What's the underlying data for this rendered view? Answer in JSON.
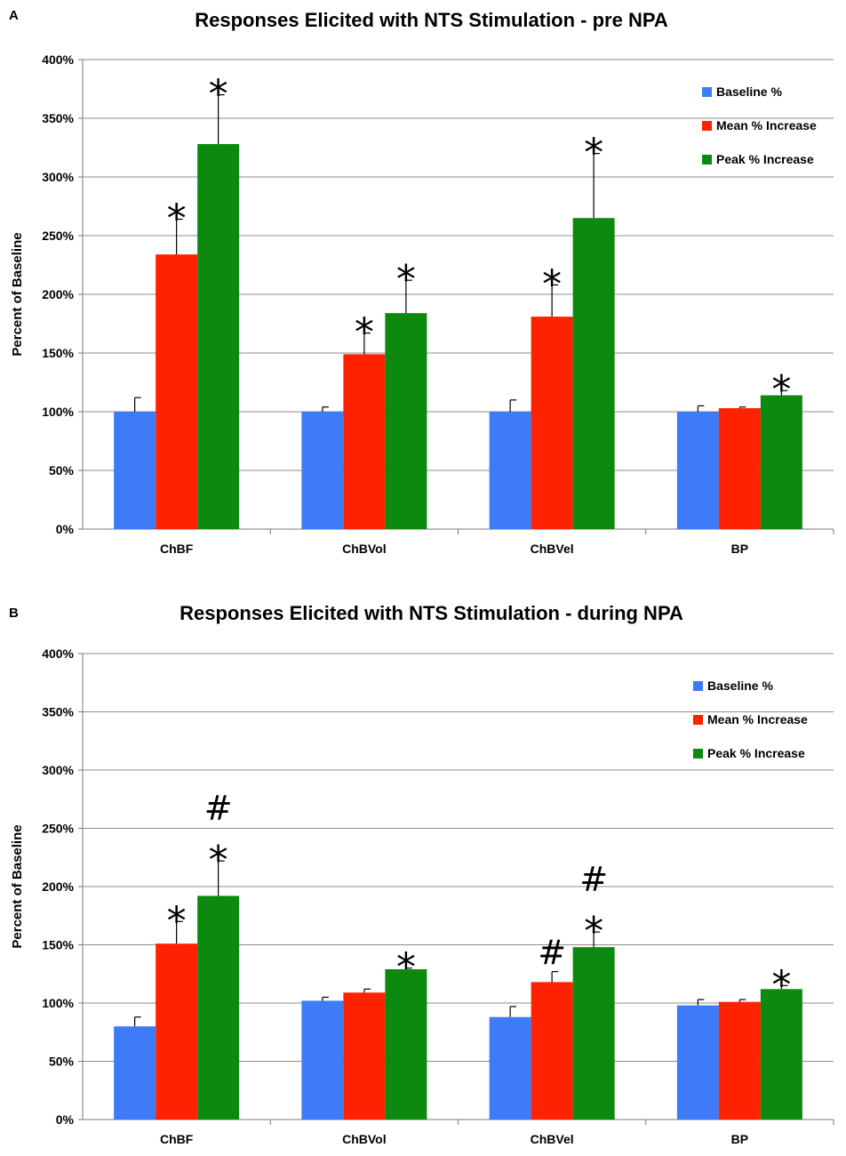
{
  "figure": {
    "panels": [
      "A",
      "B"
    ]
  },
  "colors": {
    "baseline": "#3F7BF7",
    "mean": "#FF2200",
    "peak": "#0C8A10",
    "grid": "#8c8c8c",
    "axis": "#7a7a7a",
    "text": "#000000"
  },
  "chart_data": [
    {
      "panel_label": "A",
      "type": "bar",
      "title": "Responses Elicited with NTS Stimulation - pre NPA",
      "xlabel": "",
      "ylabel": "Percent of Baseline",
      "ylim": [
        0,
        400
      ],
      "yticks": [
        0,
        50,
        100,
        150,
        200,
        250,
        300,
        350,
        400
      ],
      "ytick_labels": [
        "0%",
        "50%",
        "100%",
        "150%",
        "200%",
        "250%",
        "300%",
        "350%",
        "400%"
      ],
      "grid": true,
      "legend_position": "top-right",
      "categories": [
        "ChBF",
        "ChBVol",
        "ChBVel",
        "BP"
      ],
      "series": [
        {
          "name": "Baseline %",
          "color_key": "baseline",
          "values": [
            100,
            100,
            100,
            100
          ],
          "errors": [
            12,
            4,
            10,
            5
          ],
          "markers": [
            "",
            "",
            "",
            ""
          ]
        },
        {
          "name": "Mean % Increase",
          "color_key": "mean",
          "values": [
            234,
            149,
            181,
            103
          ],
          "errors": [
            30,
            18,
            27,
            1
          ],
          "markers": [
            "*",
            "*",
            "*",
            ""
          ]
        },
        {
          "name": "Peak % Increase",
          "color_key": "peak",
          "values": [
            328,
            184,
            265,
            114
          ],
          "errors": [
            42,
            28,
            55,
            4
          ],
          "markers": [
            "*",
            "*",
            "*",
            "*"
          ]
        }
      ]
    },
    {
      "panel_label": "B",
      "type": "bar",
      "title": "Responses Elicited with NTS Stimulation - during NPA",
      "xlabel": "",
      "ylabel": "Percent of Baseline",
      "ylim": [
        0,
        400
      ],
      "yticks": [
        0,
        50,
        100,
        150,
        200,
        250,
        300,
        350,
        400
      ],
      "ytick_labels": [
        "0%",
        "50%",
        "100%",
        "150%",
        "200%",
        "250%",
        "300%",
        "350%",
        "400%"
      ],
      "grid": true,
      "legend_position": "top-right",
      "categories": [
        "ChBF",
        "ChBVol",
        "ChBVel",
        "BP"
      ],
      "series": [
        {
          "name": "Baseline %",
          "color_key": "baseline",
          "values": [
            80,
            102,
            88,
            98
          ],
          "errors": [
            8,
            3,
            9,
            5
          ],
          "markers": [
            "",
            "",
            "",
            ""
          ]
        },
        {
          "name": "Mean % Increase",
          "color_key": "mean",
          "values": [
            151,
            109,
            118,
            101
          ],
          "errors": [
            19,
            3,
            9,
            2
          ],
          "markers": [
            "*",
            "",
            "#",
            ""
          ]
        },
        {
          "name": "Peak % Increase",
          "color_key": "peak",
          "values": [
            192,
            129,
            148,
            112
          ],
          "errors": [
            30,
            1,
            13,
            3
          ],
          "markers": [
            "#*",
            "*",
            "#*",
            "*"
          ]
        }
      ]
    }
  ]
}
